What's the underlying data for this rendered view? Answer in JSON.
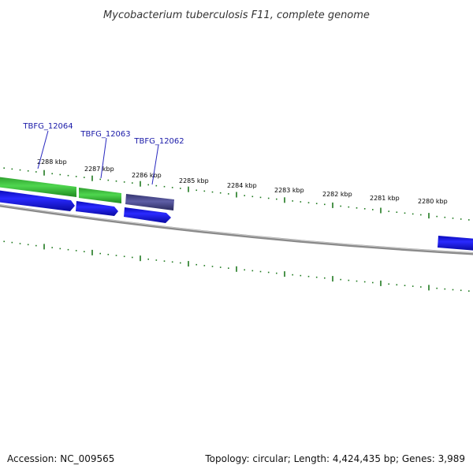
{
  "title": "Mycobacterium tuberculosis F11, complete genome",
  "footer": {
    "accession": "Accession: NC_009565",
    "summary": "Topology: circular; Length: 4,424,435 bp; Genes: 3,989"
  },
  "scale_labels": [
    "2288 kbp",
    "2287 kbp",
    "2286 kbp",
    "2285 kbp",
    "2284 kbp",
    "2283 kbp",
    "2282 kbp",
    "2281 kbp",
    "2280 kbp"
  ],
  "gene_labels": [
    "TBFG_12064",
    "TBFG_12063",
    "TBFG_12062"
  ],
  "colors": {
    "label_text": "#1a1aa8",
    "tick": "#1f7a1f",
    "backbone": "#808080",
    "gene_green": "#3cbf3c",
    "gene_blue": "#1414e6",
    "gene_purple": "#4a4a8c"
  }
}
